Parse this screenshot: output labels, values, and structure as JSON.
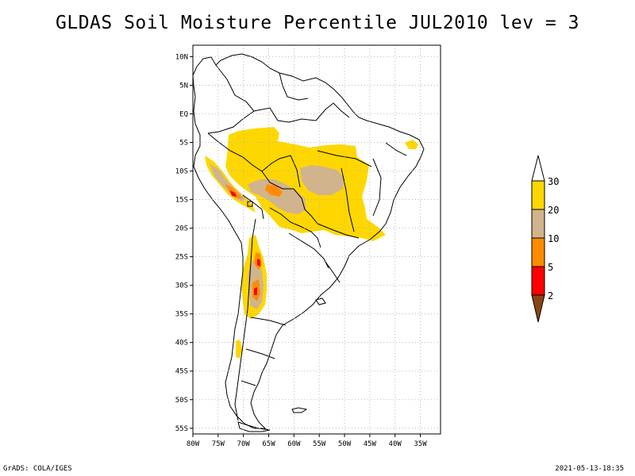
{
  "title": "GLDAS Soil Moisture Percentile JUL2010 lev = 3",
  "footer": {
    "left": "GrADS: COLA/IGES",
    "right": "2021-05-13-18:35"
  },
  "map": {
    "lat_ticks": [
      "10N",
      "5N",
      "EQ",
      "5S",
      "10S",
      "15S",
      "20S",
      "25S",
      "30S",
      "35S",
      "40S",
      "45S",
      "50S",
      "55S"
    ],
    "lat_values": [
      10,
      5,
      0,
      -5,
      -10,
      -15,
      -20,
      -25,
      -30,
      -35,
      -40,
      -45,
      -50,
      -55
    ],
    "lon_ticks": [
      "80W",
      "75W",
      "70W",
      "65W",
      "60W",
      "55W",
      "50W",
      "45W",
      "40W",
      "35W"
    ],
    "lon_values": [
      -80,
      -75,
      -70,
      -65,
      -60,
      -55,
      -50,
      -45,
      -40,
      -35
    ],
    "lon_range": [
      -80,
      -31
    ],
    "lat_range": [
      -56,
      12
    ],
    "grid": true
  },
  "legend": {
    "labels": [
      "30",
      "20",
      "10",
      "5",
      "2"
    ],
    "colors": {
      "above_30": "#ffffff",
      "20_30": "#ffd700",
      "10_20": "#d2b48c",
      "5_10": "#ff8c00",
      "2_5": "#ff0000",
      "below_2": "#8b4513"
    }
  }
}
